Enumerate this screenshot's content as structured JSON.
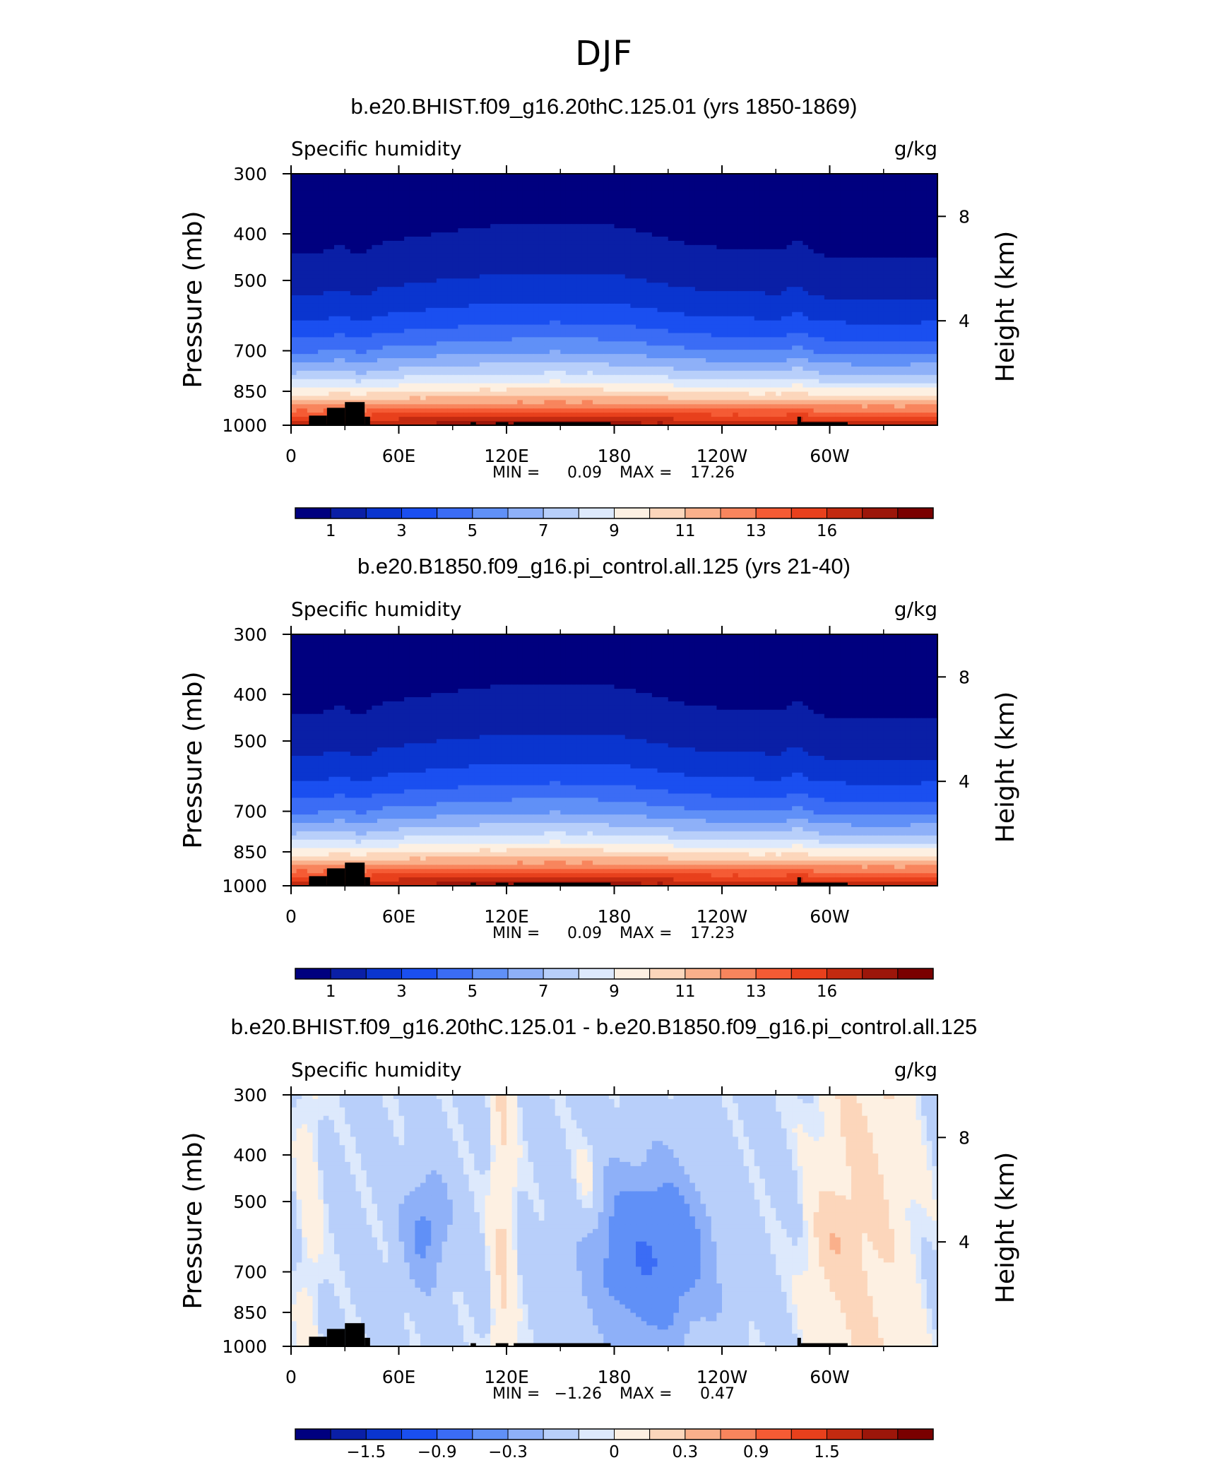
{
  "page_title": "DJF",
  "chart_data": [
    {
      "type": "heatmap",
      "title": "b.e20.BHIST.f09_g16.20thC.125.01 (yrs 1850-1869)",
      "left_string": "Specific humidity",
      "right_string": "g/kg",
      "ylabel": "Pressure (mb)",
      "ylabel_right": "Height (km)",
      "x_ticks": [
        "0",
        "60E",
        "120E",
        "180",
        "120W",
        "60W"
      ],
      "x_tick_lon": [
        0,
        60,
        120,
        180,
        240,
        300
      ],
      "xlim": [
        0,
        360
      ],
      "y_ticks": [
        "300",
        "400",
        "500",
        "700",
        "850",
        "1000"
      ],
      "y_tick_pressure": [
        300,
        400,
        500,
        700,
        850,
        1000
      ],
      "ylim": [
        1000,
        300
      ],
      "y_right_ticks": [
        "8",
        "4"
      ],
      "y_right_tick_km": [
        8,
        4
      ],
      "min_label": "MIN =",
      "min_value": "0.09",
      "max_label": "MAX =",
      "max_value": "17.26",
      "colorbar_labels": [
        "1",
        "3",
        "5",
        "7",
        "9",
        "11",
        "13",
        "16"
      ],
      "colorbar_colors": [
        "#00007f",
        "#0a1fa6",
        "#0a35cf",
        "#1a4ff0",
        "#3b6cf5",
        "#6090f7",
        "#8eb0f8",
        "#b8cffa",
        "#dde9fc",
        "#fdf0e2",
        "#fcd6bb",
        "#fab08b",
        "#f8855d",
        "#f55b34",
        "#e8401c",
        "#c32a10",
        "#9c160a",
        "#7a0000"
      ],
      "field": "abs"
    },
    {
      "type": "heatmap",
      "title": "b.e20.B1850.f09_g16.pi_control.all.125 (yrs 21-40)",
      "left_string": "Specific humidity",
      "right_string": "g/kg",
      "ylabel": "Pressure (mb)",
      "ylabel_right": "Height (km)",
      "x_ticks": [
        "0",
        "60E",
        "120E",
        "180",
        "120W",
        "60W"
      ],
      "x_tick_lon": [
        0,
        60,
        120,
        180,
        240,
        300
      ],
      "xlim": [
        0,
        360
      ],
      "y_ticks": [
        "300",
        "400",
        "500",
        "700",
        "850",
        "1000"
      ],
      "y_tick_pressure": [
        300,
        400,
        500,
        700,
        850,
        1000
      ],
      "ylim": [
        1000,
        300
      ],
      "y_right_ticks": [
        "8",
        "4"
      ],
      "y_right_tick_km": [
        8,
        4
      ],
      "min_label": "MIN =",
      "min_value": "0.09",
      "max_label": "MAX =",
      "max_value": "17.23",
      "colorbar_labels": [
        "1",
        "3",
        "5",
        "7",
        "9",
        "11",
        "13",
        "16"
      ],
      "colorbar_colors": [
        "#00007f",
        "#0a1fa6",
        "#0a35cf",
        "#1a4ff0",
        "#3b6cf5",
        "#6090f7",
        "#8eb0f8",
        "#b8cffa",
        "#dde9fc",
        "#fdf0e2",
        "#fcd6bb",
        "#fab08b",
        "#f8855d",
        "#f55b34",
        "#e8401c",
        "#c32a10",
        "#9c160a",
        "#7a0000"
      ],
      "field": "abs"
    },
    {
      "type": "heatmap",
      "title": "b.e20.BHIST.f09_g16.20thC.125.01 - b.e20.B1850.f09_g16.pi_control.all.125",
      "left_string": "Specific humidity",
      "right_string": "g/kg",
      "ylabel": "Pressure (mb)",
      "ylabel_right": "Height (km)",
      "x_ticks": [
        "0",
        "60E",
        "120E",
        "180",
        "120W",
        "60W"
      ],
      "x_tick_lon": [
        0,
        60,
        120,
        180,
        240,
        300
      ],
      "xlim": [
        0,
        360
      ],
      "y_ticks": [
        "300",
        "400",
        "500",
        "700",
        "850",
        "1000"
      ],
      "y_tick_pressure": [
        300,
        400,
        500,
        700,
        850,
        1000
      ],
      "ylim": [
        1000,
        300
      ],
      "y_right_ticks": [
        "8",
        "4"
      ],
      "y_right_tick_km": [
        8,
        4
      ],
      "min_label": "MIN =",
      "min_value": "−1.26",
      "max_label": "MAX =",
      "max_value": "0.47",
      "colorbar_labels": [
        "−1.5",
        "−0.9",
        "−0.3",
        "0",
        "0.3",
        "0.9",
        "1.5"
      ],
      "colorbar_colors": [
        "#00007f",
        "#0a1fa6",
        "#0a35cf",
        "#1a4ff0",
        "#3b6cf5",
        "#6090f7",
        "#8eb0f8",
        "#b8cffa",
        "#dde9fc",
        "#fdf0e2",
        "#fcd6bb",
        "#fab08b",
        "#f8855d",
        "#f55b34",
        "#e8401c",
        "#c32a10",
        "#9c160a",
        "#7a0000"
      ],
      "field": "diff"
    }
  ]
}
